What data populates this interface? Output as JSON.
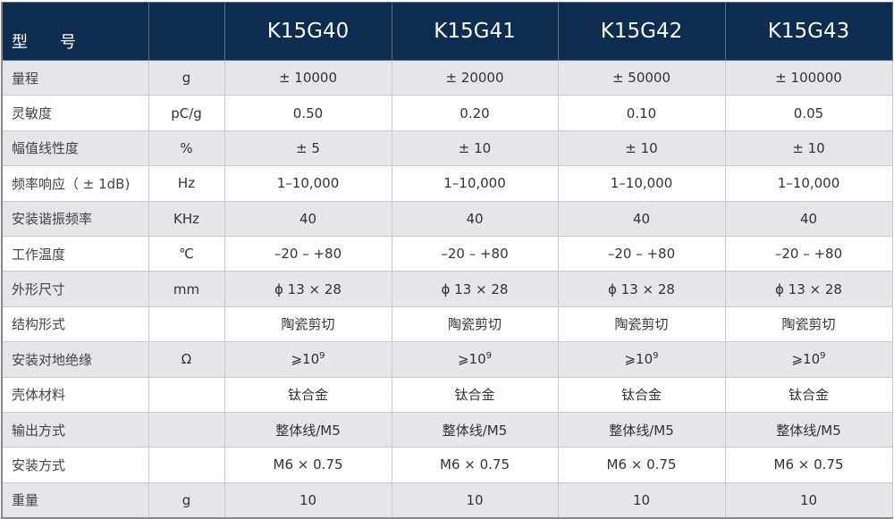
{
  "header": {
    "label": "型　　号",
    "unit": "",
    "models": [
      "K15G40",
      "K15G41",
      "K15G42",
      "K15G43"
    ]
  },
  "rows": [
    {
      "label": "量程",
      "unit": "g",
      "values": [
        "± 10000",
        "± 20000",
        "± 50000",
        "± 100000"
      ]
    },
    {
      "label": "灵敏度",
      "unit": "pC/g",
      "values": [
        "0.50",
        "0.20",
        "0.10",
        "0.05"
      ]
    },
    {
      "label": "幅值线性度",
      "unit": "%",
      "values": [
        "± 5",
        "± 10",
        "± 10",
        "± 10"
      ]
    },
    {
      "label": "频率响应（ ± 1dB)",
      "unit": "Hz",
      "values": [
        "1–10,000",
        "1–10,000",
        "1–10,000",
        "1–10,000"
      ]
    },
    {
      "label": "安装谐振频率",
      "unit": "KHz",
      "values": [
        "40",
        "40",
        "40",
        "40"
      ]
    },
    {
      "label": "工作温度",
      "unit": "℃",
      "values": [
        "–20  – +80",
        "–20  – +80",
        "–20  – +80",
        "–20  – +80"
      ]
    },
    {
      "label": "外形尺寸",
      "unit": "mm",
      "values": [
        "ϕ 13 × 28",
        "ϕ 13 × 28",
        "ϕ 13 × 28",
        "ϕ 13 × 28"
      ]
    },
    {
      "label": "结构形式",
      "unit": "",
      "values": [
        "陶瓷剪切",
        "陶瓷剪切",
        "陶瓷剪切",
        "陶瓷剪切"
      ]
    },
    {
      "label": "安装对地绝缘",
      "unit": "Ω",
      "values": [
        "⩾10",
        "⩾10",
        "⩾10",
        "⩾10"
      ],
      "exponent": "9"
    },
    {
      "label": "壳体材料",
      "unit": "",
      "values": [
        "钛合金",
        "钛合金",
        "钛合金",
        "钛合金"
      ]
    },
    {
      "label": "输出方式",
      "unit": "",
      "values": [
        "整体线/M5",
        "整体线/M5",
        "整体线/M5",
        "整体线/M5"
      ]
    },
    {
      "label": "安装方式",
      "unit": "",
      "values": [
        "M6 × 0.75",
        "M6 × 0.75",
        "M6 × 0.75",
        "M6 × 0.75"
      ]
    },
    {
      "label": "重量",
      "unit": "g",
      "values": [
        "10",
        "10",
        "10",
        "10"
      ]
    }
  ],
  "colors": {
    "header_bg": "#0c2c50",
    "alt_row": "#e5e5ea"
  }
}
